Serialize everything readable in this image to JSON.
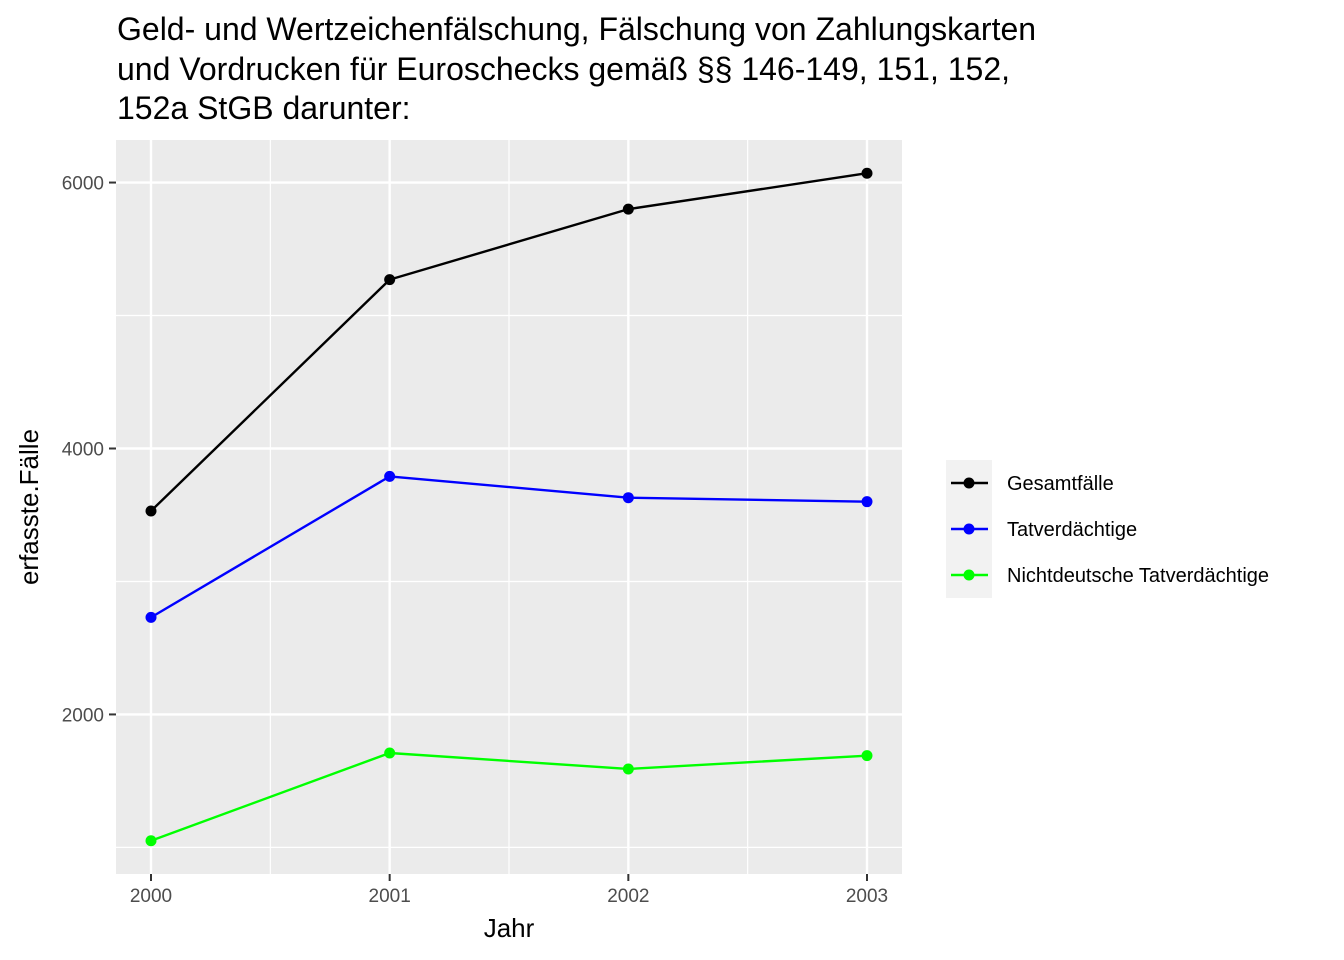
{
  "chart_data": {
    "type": "line",
    "title_lines": [
      "Geld- und Wertzeichenfälschung, Fälschung von Zahlungskarten",
      "und Vordrucken für Euroschecks gemäß §§ 146-149, 151, 152,",
      "152a StGB darunter:"
    ],
    "xlabel": "Jahr",
    "ylabel": "erfasste.Fälle",
    "x": [
      "2000",
      "2001",
      "2002",
      "2003"
    ],
    "x_tick_labels": [
      "2000",
      "2001",
      "2002",
      "2003"
    ],
    "y_tick_labels": [
      "2000",
      "4000",
      "6000"
    ],
    "y_ticks": [
      2000,
      4000,
      6000
    ],
    "ylim": [
      800,
      6320
    ],
    "grid": true,
    "legend_position": "right",
    "series": [
      {
        "name": "Gesamtfälle",
        "color": "#000000",
        "values": [
          3530,
          5270,
          5800,
          6070
        ]
      },
      {
        "name": "Tatverdächtige",
        "color": "#0000ff",
        "values": [
          2730,
          3790,
          3630,
          3600
        ]
      },
      {
        "name": "Nichtdeutsche Tatverdächtige",
        "color": "#00ff00",
        "values": [
          1050,
          1710,
          1590,
          1690
        ]
      }
    ]
  }
}
